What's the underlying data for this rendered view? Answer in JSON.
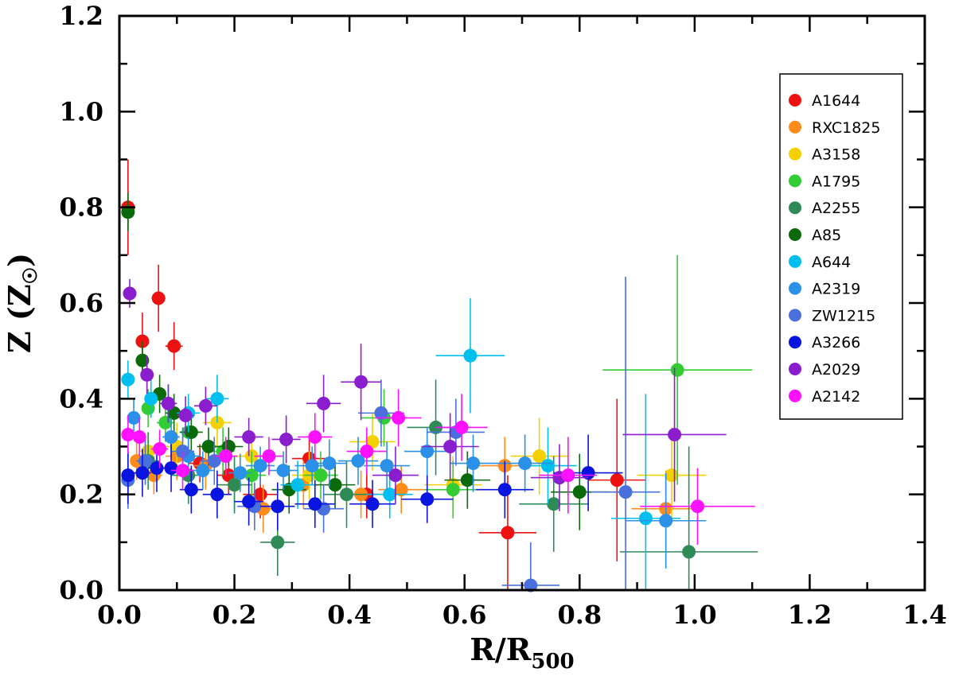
{
  "chart_data": {
    "type": "scatter",
    "xlabel": {
      "main": "R/R",
      "sub": "500"
    },
    "ylabel": {
      "main": "Z (Z",
      "sub": "☉",
      "close": ")"
    },
    "xlim": [
      0.0,
      1.4
    ],
    "ylim": [
      0.0,
      1.2
    ],
    "xticks": [
      "0.0",
      "0.2",
      "0.4",
      "0.6",
      "0.8",
      "1.0",
      "1.2",
      "1.4"
    ],
    "yticks": [
      "0.0",
      "0.2",
      "0.4",
      "0.6",
      "0.8",
      "1.0",
      "1.2"
    ],
    "grid": false,
    "legend_position": "top-right",
    "error_bars": true,
    "series": [
      {
        "name": "A1644",
        "color": "#ee1111",
        "points": [
          [
            0.015,
            0.8,
            0.01,
            0.1
          ],
          [
            0.04,
            0.52,
            0.01,
            0.06
          ],
          [
            0.068,
            0.61,
            0.012,
            0.07
          ],
          [
            0.095,
            0.51,
            0.015,
            0.05
          ],
          [
            0.14,
            0.265,
            0.02,
            0.04
          ],
          [
            0.19,
            0.24,
            0.02,
            0.04
          ],
          [
            0.245,
            0.2,
            0.03,
            0.05
          ],
          [
            0.33,
            0.275,
            0.03,
            0.05
          ],
          [
            0.43,
            0.2,
            0.04,
            0.05
          ],
          [
            0.675,
            0.12,
            0.05,
            0.12
          ],
          [
            0.865,
            0.23,
            0.05,
            0.17
          ]
        ]
      },
      {
        "name": "RXC1825",
        "color": "#ff8c1a",
        "points": [
          [
            0.03,
            0.27,
            0.01,
            0.04
          ],
          [
            0.06,
            0.24,
            0.015,
            0.04
          ],
          [
            0.1,
            0.28,
            0.02,
            0.05
          ],
          [
            0.15,
            0.26,
            0.02,
            0.05
          ],
          [
            0.2,
            0.22,
            0.025,
            0.05
          ],
          [
            0.25,
            0.17,
            0.03,
            0.05
          ],
          [
            0.32,
            0.22,
            0.03,
            0.05
          ],
          [
            0.42,
            0.2,
            0.04,
            0.05
          ],
          [
            0.49,
            0.21,
            0.04,
            0.05
          ],
          [
            0.67,
            0.26,
            0.05,
            0.06
          ],
          [
            0.95,
            0.17,
            0.06,
            0.08
          ]
        ]
      },
      {
        "name": "A3158",
        "color": "#f5d000",
        "points": [
          [
            0.05,
            0.29,
            0.015,
            0.04
          ],
          [
            0.1,
            0.3,
            0.02,
            0.05
          ],
          [
            0.17,
            0.35,
            0.025,
            0.05
          ],
          [
            0.23,
            0.28,
            0.03,
            0.05
          ],
          [
            0.33,
            0.24,
            0.03,
            0.05
          ],
          [
            0.44,
            0.31,
            0.04,
            0.06
          ],
          [
            0.58,
            0.22,
            0.05,
            0.06
          ],
          [
            0.73,
            0.28,
            0.05,
            0.08
          ],
          [
            0.96,
            0.24,
            0.06,
            0.1
          ]
        ]
      },
      {
        "name": "A1795",
        "color": "#33cc33",
        "points": [
          [
            0.05,
            0.38,
            0.01,
            0.04
          ],
          [
            0.08,
            0.35,
            0.015,
            0.04
          ],
          [
            0.12,
            0.33,
            0.015,
            0.05
          ],
          [
            0.18,
            0.29,
            0.02,
            0.05
          ],
          [
            0.23,
            0.24,
            0.025,
            0.05
          ],
          [
            0.35,
            0.24,
            0.03,
            0.05
          ],
          [
            0.46,
            0.36,
            0.04,
            0.06
          ],
          [
            0.58,
            0.21,
            0.05,
            0.06
          ],
          [
            0.97,
            0.46,
            0.13,
            0.24
          ]
        ]
      },
      {
        "name": "A2255",
        "color": "#2e8b57",
        "points": [
          [
            0.05,
            0.27,
            0.02,
            0.06
          ],
          [
            0.12,
            0.24,
            0.03,
            0.06
          ],
          [
            0.2,
            0.22,
            0.03,
            0.06
          ],
          [
            0.275,
            0.1,
            0.03,
            0.07
          ],
          [
            0.395,
            0.2,
            0.04,
            0.07
          ],
          [
            0.55,
            0.34,
            0.05,
            0.1
          ],
          [
            0.755,
            0.18,
            0.06,
            0.1
          ],
          [
            0.99,
            0.08,
            0.12,
            0.22
          ]
        ]
      },
      {
        "name": "A85",
        "color": "#0a6a0a",
        "points": [
          [
            0.015,
            0.79,
            0.01,
            0.04
          ],
          [
            0.04,
            0.48,
            0.01,
            0.04
          ],
          [
            0.07,
            0.41,
            0.01,
            0.04
          ],
          [
            0.095,
            0.37,
            0.015,
            0.04
          ],
          [
            0.125,
            0.33,
            0.02,
            0.04
          ],
          [
            0.155,
            0.3,
            0.02,
            0.04
          ],
          [
            0.19,
            0.3,
            0.025,
            0.04
          ],
          [
            0.295,
            0.21,
            0.03,
            0.05
          ],
          [
            0.375,
            0.22,
            0.035,
            0.05
          ],
          [
            0.605,
            0.23,
            0.04,
            0.06
          ],
          [
            0.8,
            0.205,
            0.05,
            0.08
          ]
        ]
      },
      {
        "name": "A644",
        "color": "#00bfef",
        "points": [
          [
            0.015,
            0.44,
            0.01,
            0.04
          ],
          [
            0.055,
            0.4,
            0.01,
            0.04
          ],
          [
            0.085,
            0.39,
            0.015,
            0.04
          ],
          [
            0.12,
            0.37,
            0.02,
            0.04
          ],
          [
            0.17,
            0.4,
            0.02,
            0.05
          ],
          [
            0.31,
            0.22,
            0.03,
            0.05
          ],
          [
            0.47,
            0.2,
            0.04,
            0.05
          ],
          [
            0.61,
            0.49,
            0.06,
            0.12
          ],
          [
            0.745,
            0.26,
            0.05,
            0.08
          ],
          [
            0.915,
            0.15,
            0.06,
            0.26
          ]
        ]
      },
      {
        "name": "A2319",
        "color": "#2a90e8",
        "points": [
          [
            0.025,
            0.36,
            0.01,
            0.04
          ],
          [
            0.09,
            0.32,
            0.015,
            0.04
          ],
          [
            0.12,
            0.28,
            0.02,
            0.04
          ],
          [
            0.145,
            0.25,
            0.02,
            0.04
          ],
          [
            0.21,
            0.245,
            0.02,
            0.04
          ],
          [
            0.245,
            0.26,
            0.025,
            0.04
          ],
          [
            0.285,
            0.25,
            0.025,
            0.04
          ],
          [
            0.335,
            0.26,
            0.03,
            0.04
          ],
          [
            0.365,
            0.265,
            0.03,
            0.05
          ],
          [
            0.415,
            0.27,
            0.035,
            0.05
          ],
          [
            0.465,
            0.26,
            0.04,
            0.05
          ],
          [
            0.535,
            0.29,
            0.04,
            0.05
          ],
          [
            0.615,
            0.265,
            0.04,
            0.06
          ],
          [
            0.705,
            0.265,
            0.05,
            0.06
          ],
          [
            0.95,
            0.145,
            0.07,
            0.1
          ]
        ]
      },
      {
        "name": "ZW1215",
        "color": "#4a70dd",
        "points": [
          [
            0.015,
            0.23,
            0.01,
            0.06
          ],
          [
            0.045,
            0.27,
            0.015,
            0.05
          ],
          [
            0.11,
            0.29,
            0.02,
            0.05
          ],
          [
            0.165,
            0.27,
            0.025,
            0.05
          ],
          [
            0.235,
            0.175,
            0.03,
            0.05
          ],
          [
            0.355,
            0.17,
            0.035,
            0.05
          ],
          [
            0.455,
            0.37,
            0.04,
            0.07
          ],
          [
            0.585,
            0.33,
            0.05,
            0.07
          ],
          [
            0.715,
            0.01,
            0.05,
            0.09
          ],
          [
            0.88,
            0.205,
            0.06,
            0.45
          ]
        ]
      },
      {
        "name": "A3266",
        "color": "#0a14e0",
        "points": [
          [
            0.015,
            0.24,
            0.01,
            0.06
          ],
          [
            0.04,
            0.245,
            0.015,
            0.05
          ],
          [
            0.065,
            0.255,
            0.015,
            0.05
          ],
          [
            0.09,
            0.255,
            0.02,
            0.05
          ],
          [
            0.125,
            0.21,
            0.02,
            0.05
          ],
          [
            0.17,
            0.2,
            0.025,
            0.05
          ],
          [
            0.225,
            0.185,
            0.025,
            0.05
          ],
          [
            0.275,
            0.175,
            0.03,
            0.05
          ],
          [
            0.34,
            0.18,
            0.035,
            0.05
          ],
          [
            0.44,
            0.18,
            0.04,
            0.05
          ],
          [
            0.535,
            0.19,
            0.045,
            0.05
          ],
          [
            0.67,
            0.21,
            0.05,
            0.06
          ],
          [
            0.815,
            0.245,
            0.06,
            0.08
          ]
        ]
      },
      {
        "name": "A2029",
        "color": "#8a1ecf",
        "points": [
          [
            0.018,
            0.62,
            0.01,
            0.03
          ],
          [
            0.048,
            0.45,
            0.01,
            0.04
          ],
          [
            0.085,
            0.39,
            0.015,
            0.04
          ],
          [
            0.115,
            0.365,
            0.015,
            0.04
          ],
          [
            0.15,
            0.385,
            0.02,
            0.04
          ],
          [
            0.225,
            0.32,
            0.025,
            0.04
          ],
          [
            0.29,
            0.315,
            0.025,
            0.05
          ],
          [
            0.355,
            0.39,
            0.03,
            0.06
          ],
          [
            0.42,
            0.435,
            0.035,
            0.08
          ],
          [
            0.48,
            0.24,
            0.04,
            0.06
          ],
          [
            0.575,
            0.3,
            0.05,
            0.07
          ],
          [
            0.765,
            0.235,
            0.05,
            0.07
          ],
          [
            0.965,
            0.325,
            0.09,
            0.14
          ]
        ]
      },
      {
        "name": "A2142",
        "color": "#ff10ff",
        "points": [
          [
            0.015,
            0.325,
            0.01,
            0.04
          ],
          [
            0.035,
            0.32,
            0.01,
            0.04
          ],
          [
            0.07,
            0.295,
            0.015,
            0.04
          ],
          [
            0.11,
            0.25,
            0.02,
            0.04
          ],
          [
            0.185,
            0.28,
            0.02,
            0.04
          ],
          [
            0.26,
            0.28,
            0.025,
            0.04
          ],
          [
            0.34,
            0.32,
            0.03,
            0.05
          ],
          [
            0.43,
            0.29,
            0.035,
            0.05
          ],
          [
            0.485,
            0.36,
            0.04,
            0.06
          ],
          [
            0.595,
            0.34,
            0.045,
            0.07
          ],
          [
            0.78,
            0.24,
            0.05,
            0.08
          ],
          [
            1.005,
            0.175,
            0.1,
            0.08
          ]
        ]
      }
    ]
  }
}
